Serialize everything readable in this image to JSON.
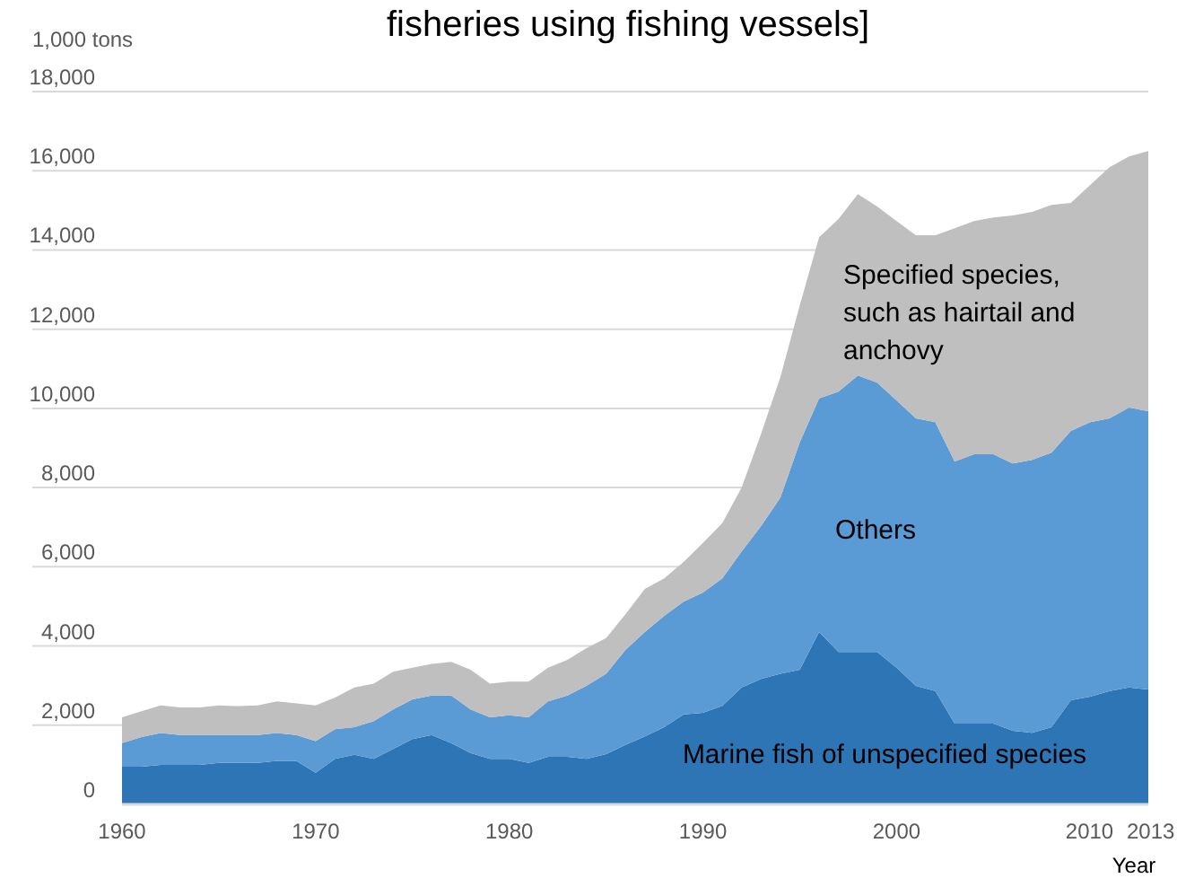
{
  "chart_data": {
    "type": "area",
    "stacked": true,
    "title": "fisheries using fishing vessels]",
    "xlabel": "Year",
    "ylabel": "1,000 tons",
    "x": [
      1960,
      1961,
      1962,
      1963,
      1964,
      1965,
      1966,
      1967,
      1968,
      1969,
      1970,
      1971,
      1972,
      1973,
      1974,
      1975,
      1976,
      1977,
      1978,
      1979,
      1980,
      1981,
      1982,
      1983,
      1984,
      1985,
      1986,
      1987,
      1988,
      1989,
      1990,
      1991,
      1992,
      1993,
      1994,
      1995,
      1996,
      1997,
      1998,
      1999,
      2000,
      2001,
      2002,
      2003,
      2004,
      2005,
      2006,
      2007,
      2008,
      2009,
      2010,
      2011,
      2012,
      2013
    ],
    "series": [
      {
        "name": "Marine fish of unspecified species",
        "color": "#2e75b6",
        "values": [
          950,
          950,
          1000,
          1000,
          1000,
          1050,
          1050,
          1050,
          1100,
          1100,
          800,
          1150,
          1250,
          1150,
          1400,
          1650,
          1750,
          1550,
          1300,
          1150,
          1150,
          1050,
          1200,
          1200,
          1150,
          1270,
          1500,
          1720,
          1950,
          2270,
          2310,
          2490,
          2950,
          3170,
          3300,
          3400,
          4350,
          3850,
          3850,
          3850,
          3450,
          2990,
          2860,
          2040,
          2040,
          2040,
          1860,
          1810,
          1950,
          2630,
          2720,
          2860,
          2950,
          2900
        ]
      },
      {
        "name": "Others",
        "color": "#5b9bd5",
        "values": [
          600,
          750,
          800,
          750,
          750,
          700,
          700,
          700,
          700,
          650,
          800,
          750,
          700,
          950,
          1000,
          1000,
          1000,
          1200,
          1100,
          1050,
          1100,
          1150,
          1400,
          1550,
          1850,
          2030,
          2400,
          2630,
          2810,
          2850,
          3040,
          3220,
          3440,
          3860,
          4450,
          5740,
          5900,
          6570,
          6980,
          6800,
          6750,
          6760,
          6790,
          6620,
          6800,
          6800,
          6750,
          6890,
          6930,
          6800,
          6930,
          6890,
          7070,
          7030
        ]
      },
      {
        "name": "Specified species, such as hairtail and anchovy",
        "color": "#bfbfbf",
        "values": [
          650,
          650,
          700,
          700,
          700,
          750,
          730,
          750,
          800,
          800,
          900,
          800,
          1000,
          950,
          950,
          800,
          800,
          850,
          1000,
          850,
          850,
          900,
          850,
          900,
          950,
          900,
          900,
          1090,
          950,
          1000,
          1250,
          1390,
          1610,
          2320,
          3040,
          3460,
          4070,
          4360,
          4580,
          4450,
          4530,
          4620,
          4720,
          5890,
          5890,
          5980,
          6260,
          6260,
          6260,
          5760,
          5990,
          6340,
          6340,
          6570
        ]
      }
    ],
    "xlim": [
      1960,
      2013
    ],
    "xticks": [
      1960,
      1970,
      1980,
      1990,
      2000,
      2010,
      2013
    ],
    "ylim": [
      0,
      18000
    ],
    "yticks": [
      0,
      {
        "value": 2000,
        "label": "2,000"
      },
      {
        "value": 4000,
        "label": "4,000"
      },
      {
        "value": 6000,
        "label": "6,000"
      },
      {
        "value": 8000,
        "label": "8,000"
      },
      {
        "value": 10000,
        "label": "10,000"
      },
      {
        "value": 12000,
        "label": "12,000"
      },
      {
        "value": 14000,
        "label": "14,000"
      },
      {
        "value": 16000,
        "label": "16,000"
      },
      {
        "value": 18000,
        "label": "18,000"
      }
    ],
    "grid": "y"
  }
}
